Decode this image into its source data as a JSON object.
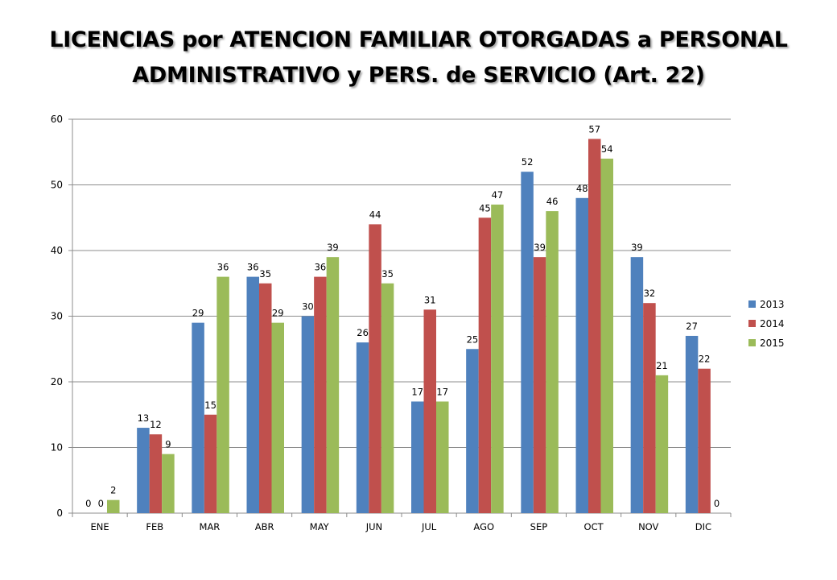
{
  "colors": {
    "series_2013": "#4f81bd",
    "series_2014": "#c0504d",
    "series_2015": "#9bbb59",
    "gridline": "#8c8c8c",
    "text": "#000000"
  },
  "chart_data": {
    "type": "bar",
    "title": "LICENCIAS por ATENCION FAMILIAR OTORGADAS a PERSONAL ADMINISTRATIVO y PERS. de SERVICIO (Art. 22)",
    "title_lines": [
      "LICENCIAS por ATENCION FAMILIAR OTORGADAS a PERSONAL",
      "ADMINISTRATIVO y PERS. de SERVICIO (Art. 22)"
    ],
    "xlabel": "",
    "ylabel": "",
    "ylim": [
      0,
      60
    ],
    "yticks": [
      0,
      10,
      20,
      30,
      40,
      50,
      60
    ],
    "grid": true,
    "legend_position": "right",
    "categories": [
      "ENE",
      "FEB",
      "MAR",
      "ABR",
      "MAY",
      "JUN",
      "JUL",
      "AGO",
      "SEP",
      "OCT",
      "NOV",
      "DIC"
    ],
    "series": [
      {
        "name": "2013",
        "values": [
          0,
          13,
          29,
          36,
          30,
          26,
          17,
          25,
          52,
          48,
          39,
          27
        ]
      },
      {
        "name": "2014",
        "values": [
          0,
          12,
          15,
          35,
          36,
          44,
          31,
          45,
          39,
          57,
          32,
          22
        ]
      },
      {
        "name": "2015",
        "values": [
          2,
          9,
          36,
          29,
          39,
          35,
          17,
          47,
          46,
          54,
          21,
          0
        ]
      }
    ]
  }
}
